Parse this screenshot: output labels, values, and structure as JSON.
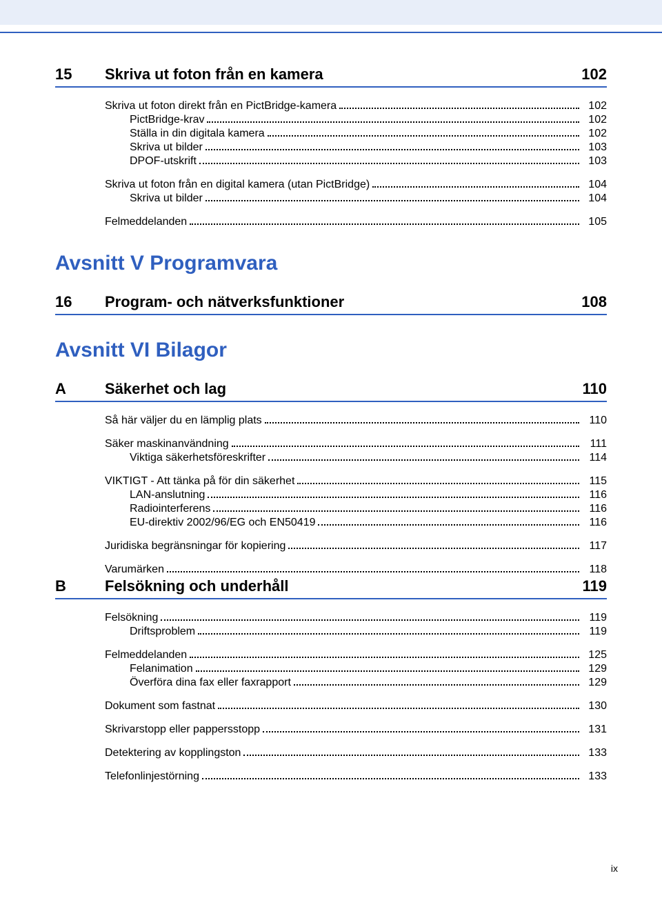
{
  "footer_page": "ix",
  "sections": [
    {
      "num": "15",
      "title": "Skriva ut foton från en kamera",
      "page": "102",
      "groups": [
        {
          "items": [
            {
              "level": 1,
              "label": "Skriva ut foton direkt från en PictBridge-kamera",
              "page": "102"
            },
            {
              "level": 2,
              "label": "PictBridge-krav",
              "page": "102"
            },
            {
              "level": 2,
              "label": "Ställa in din digitala kamera",
              "page": "102"
            },
            {
              "level": 2,
              "label": "Skriva ut bilder",
              "page": "103"
            },
            {
              "level": 2,
              "label": "DPOF-utskrift",
              "page": "103"
            }
          ]
        },
        {
          "items": [
            {
              "level": 1,
              "label": "Skriva ut foton från en digital kamera (utan PictBridge)",
              "page": "104"
            },
            {
              "level": 2,
              "label": "Skriva ut bilder",
              "page": "104"
            }
          ]
        },
        {
          "items": [
            {
              "level": 1,
              "label": "Felmeddelanden",
              "page": "105"
            }
          ]
        }
      ]
    }
  ],
  "parts": [
    {
      "heading": "Avsnitt V  Programvara",
      "sections": [
        {
          "num": "16",
          "title": "Program- och nätverksfunktioner",
          "page": "108",
          "groups": []
        }
      ]
    },
    {
      "heading": "Avsnitt VI  Bilagor",
      "sections": [
        {
          "num": "A",
          "title": "Säkerhet och lag",
          "page": "110",
          "groups": [
            {
              "items": [
                {
                  "level": 1,
                  "label": "Så här väljer du en lämplig plats",
                  "page": "110"
                }
              ]
            },
            {
              "items": [
                {
                  "level": 1,
                  "label": "Säker maskinanvändning",
                  "page": "111"
                },
                {
                  "level": 2,
                  "label": "Viktiga säkerhetsföreskrifter",
                  "page": "114"
                }
              ]
            },
            {
              "items": [
                {
                  "level": 1,
                  "label": "VIKTIGT - Att tänka på för din säkerhet",
                  "page": "115"
                },
                {
                  "level": 2,
                  "label": "LAN-anslutning",
                  "page": "116"
                },
                {
                  "level": 2,
                  "label": "Radiointerferens",
                  "page": "116"
                },
                {
                  "level": 2,
                  "label": "EU-direktiv 2002/96/EG och EN50419",
                  "page": "116"
                }
              ]
            },
            {
              "items": [
                {
                  "level": 1,
                  "label": "Juridiska begränsningar för kopiering",
                  "page": "117"
                }
              ]
            },
            {
              "items": [
                {
                  "level": 1,
                  "label": "Varumärken",
                  "page": "118"
                }
              ]
            }
          ]
        },
        {
          "num": "B",
          "title": "Felsökning och underhåll",
          "page": "119",
          "groups": [
            {
              "items": [
                {
                  "level": 1,
                  "label": "Felsökning",
                  "page": "119"
                },
                {
                  "level": 2,
                  "label": "Driftsproblem",
                  "page": "119"
                }
              ]
            },
            {
              "items": [
                {
                  "level": 1,
                  "label": "Felmeddelanden",
                  "page": "125"
                },
                {
                  "level": 2,
                  "label": "Felanimation",
                  "page": "129"
                },
                {
                  "level": 2,
                  "label": "Överföra dina fax eller faxrapport",
                  "page": "129"
                }
              ]
            },
            {
              "items": [
                {
                  "level": 1,
                  "label": "Dokument som fastnat",
                  "page": "130"
                }
              ]
            },
            {
              "items": [
                {
                  "level": 1,
                  "label": "Skrivarstopp eller pappersstopp",
                  "page": "131"
                }
              ]
            },
            {
              "items": [
                {
                  "level": 1,
                  "label": "Detektering av kopplingston",
                  "page": "133"
                }
              ]
            },
            {
              "items": [
                {
                  "level": 1,
                  "label": "Telefonlinjestörning",
                  "page": "133"
                }
              ]
            }
          ]
        }
      ]
    }
  ]
}
